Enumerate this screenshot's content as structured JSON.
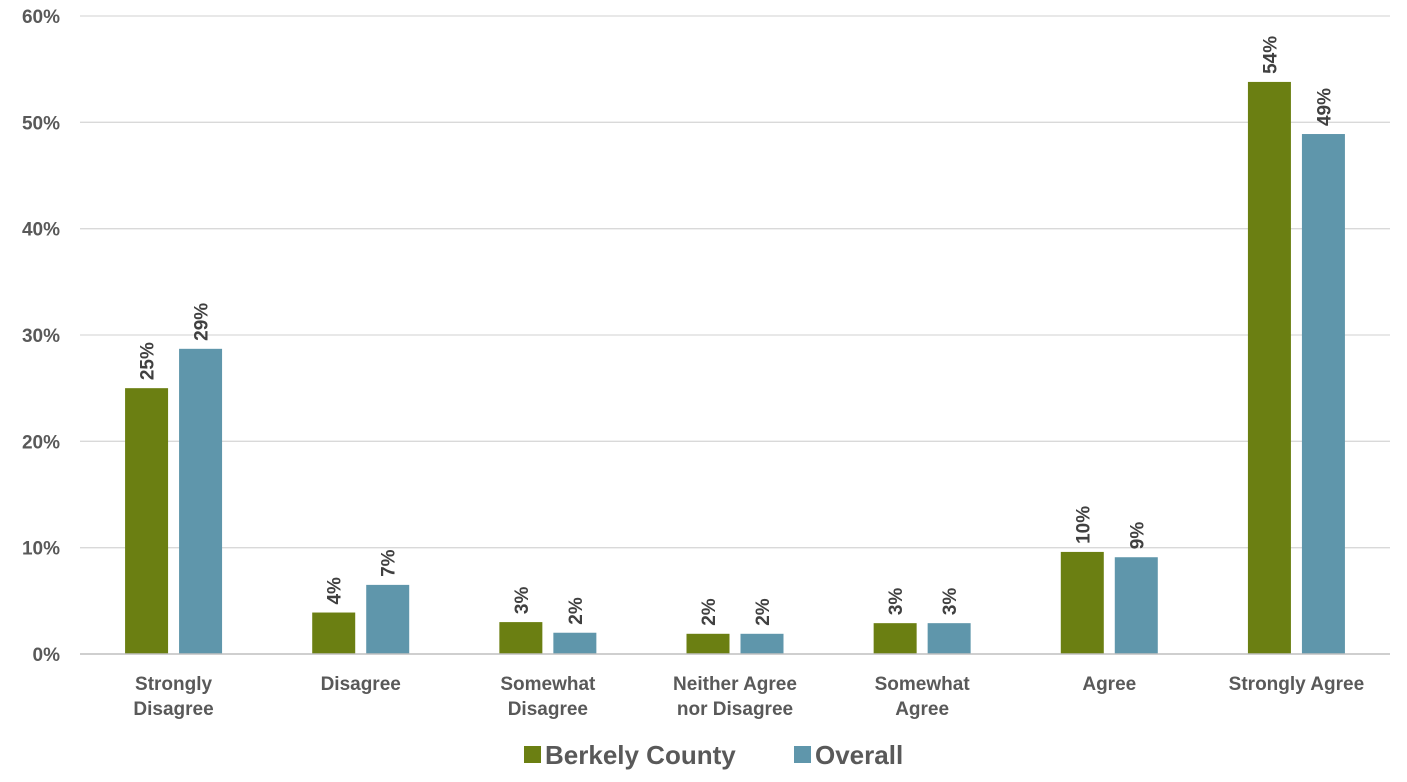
{
  "chart_data": {
    "type": "bar",
    "title": "",
    "xlabel": "",
    "ylabel": "",
    "categories": [
      [
        "Strongly",
        "Disagree"
      ],
      [
        "Disagree"
      ],
      [
        "Somewhat",
        "Disagree"
      ],
      [
        "Neither Agree",
        "nor Disagree"
      ],
      [
        "Somewhat",
        "Agree"
      ],
      [
        "Agree"
      ],
      [
        "Strongly Agree"
      ]
    ],
    "series": [
      {
        "name": "Berkely County",
        "color": "#6b7f12",
        "values": [
          25,
          3.9,
          3.0,
          1.9,
          2.9,
          9.6,
          53.8
        ],
        "labels": [
          "25%",
          "4%",
          "3%",
          "2%",
          "3%",
          "10%",
          "54%"
        ]
      },
      {
        "name": "Overall",
        "color": "#5f96ab",
        "values": [
          28.7,
          6.5,
          2.0,
          1.9,
          2.9,
          9.1,
          48.9
        ],
        "labels": [
          "29%",
          "7%",
          "2%",
          "2%",
          "3%",
          "9%",
          "49%"
        ]
      }
    ],
    "ylim": [
      0,
      60
    ],
    "yticks": [
      0,
      10,
      20,
      30,
      40,
      50,
      60
    ],
    "ytick_labels": [
      "0%",
      "10%",
      "20%",
      "30%",
      "40%",
      "50%",
      "60%"
    ],
    "grid": true,
    "legend": "bottom-center",
    "data_label_rotation": "vertical"
  }
}
